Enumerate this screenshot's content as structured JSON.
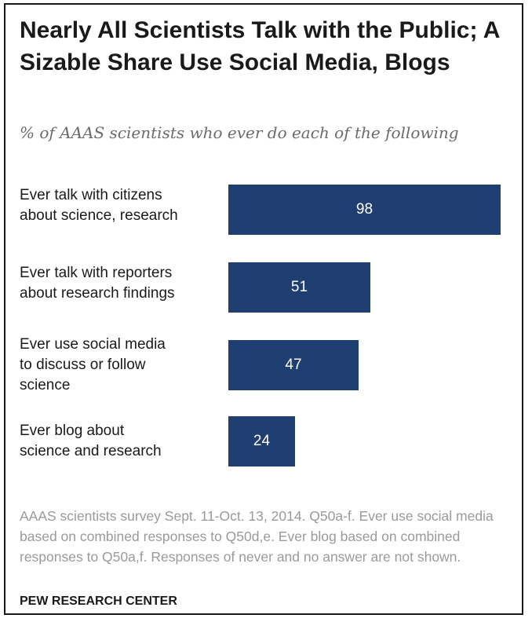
{
  "chart_data": {
    "type": "bar",
    "orientation": "horizontal",
    "title": "Nearly All Scientists Talk with the Public; A Sizable Share Use Social Media, Blogs",
    "subtitle": "% of AAAS scientists who ever do each of the following",
    "categories": [
      "Ever talk with citizens\nabout science, research",
      "Ever talk with reporters\nabout research findings",
      "Ever use social media\nto discuss or follow\nscience",
      "Ever blog about\nscience and research"
    ],
    "values": [
      98,
      51,
      47,
      24
    ],
    "xlim": [
      0,
      100
    ],
    "bar_color": "#1f3f73",
    "grid": false,
    "note": "AAAS scientists survey Sept. 11-Oct. 13, 2014. Q50a-f. Ever use social media based on combined responses to Q50d,e. Ever blog based on combined responses to Q50a,f. Responses of never and no answer are not shown.",
    "source": "PEW RESEARCH CENTER"
  }
}
